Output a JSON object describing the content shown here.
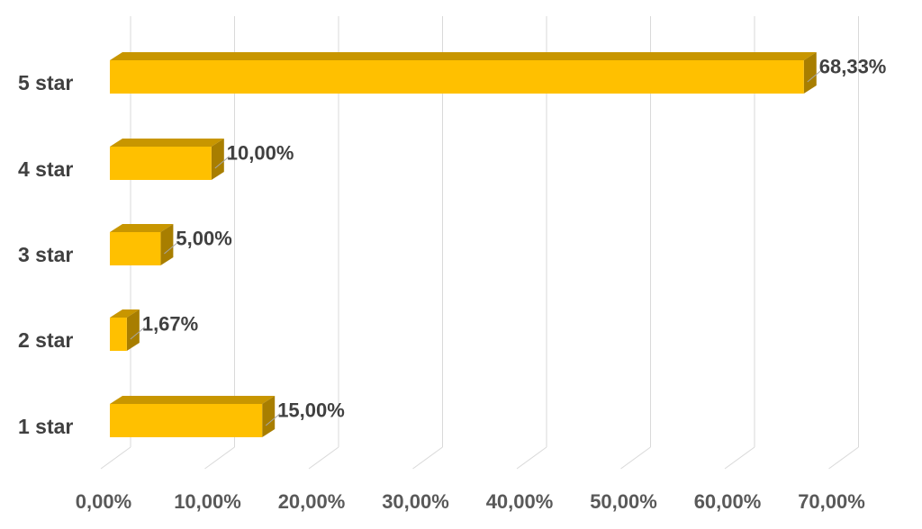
{
  "chart_data": {
    "type": "bar",
    "orientation": "horizontal",
    "style": "3d",
    "categories": [
      "1 star",
      "2 star",
      "3 star",
      "4 star",
      "5 star"
    ],
    "values": [
      15.0,
      1.67,
      5.0,
      10.0,
      68.33
    ],
    "value_labels": [
      "15,00%",
      "1,67%",
      "5,00%",
      "10,00%",
      "68,33%"
    ],
    "xlim": [
      0,
      70
    ],
    "x_ticks": [
      "0,00%",
      "10,00%",
      "20,00%",
      "30,00%",
      "40,00%",
      "50,00%",
      "60,00%",
      "70,00%"
    ],
    "grid": true,
    "legend": "none",
    "colors": {
      "bar_front": "#FFC000",
      "bar_top": "#C89600",
      "bar_side": "#A87E00",
      "grid": "#D9D9D9",
      "leader": "#A6A6A6"
    }
  }
}
